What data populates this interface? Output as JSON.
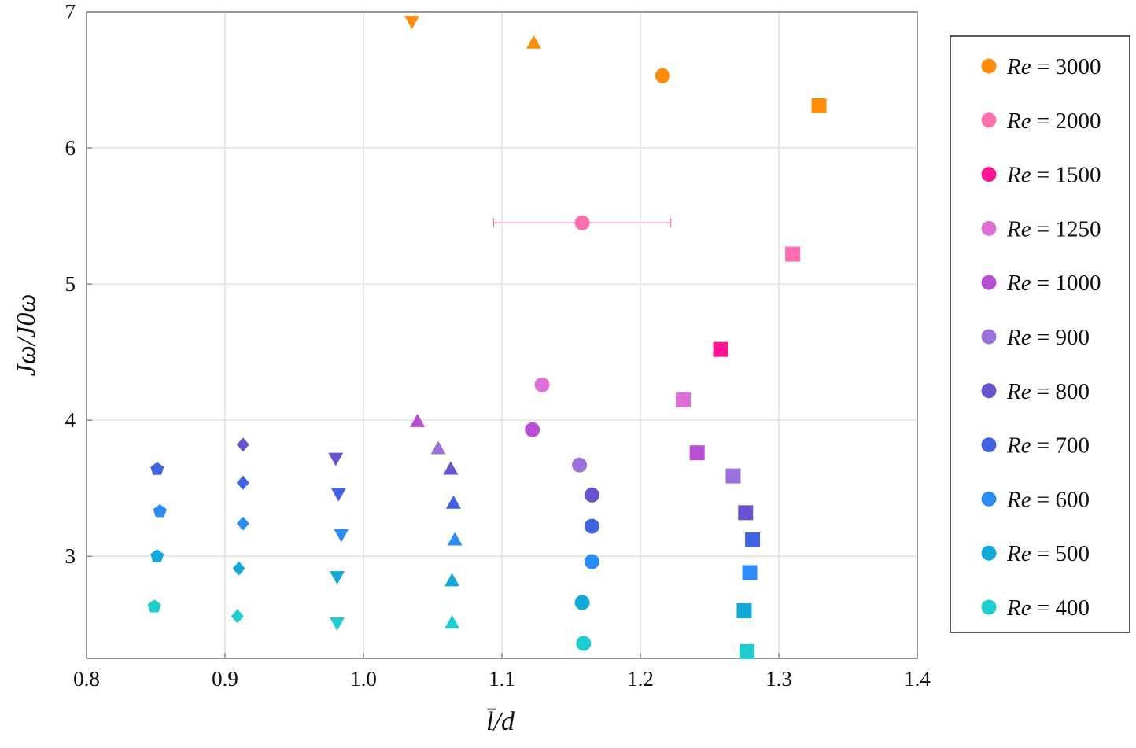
{
  "chart_data": {
    "type": "scatter",
    "xlabel": "l̄/d",
    "ylabel": "Jω/J0ω",
    "xlim": [
      0.8,
      1.4
    ],
    "ylim": [
      2.25,
      7.0
    ],
    "grid": true,
    "legend_position": "right",
    "x_ticks": [
      "0.8",
      "0.9",
      "1.0",
      "1.1",
      "1.2",
      "1.3",
      "1.4"
    ],
    "y_ticks": [
      "3",
      "4",
      "5",
      "6",
      "7"
    ],
    "marker_shapes": [
      "pentagon",
      "diamond",
      "triangle-down",
      "triangle-up",
      "circle",
      "square"
    ],
    "series": [
      {
        "name": "Re = 3000",
        "re": "3000",
        "color": "#ff8c0a",
        "points": [
          {
            "x": 1.035,
            "y": 6.93,
            "marker": "triangle-down"
          },
          {
            "x": 1.123,
            "y": 6.77,
            "marker": "triangle-up"
          },
          {
            "x": 1.216,
            "y": 6.53,
            "marker": "circle"
          },
          {
            "x": 1.329,
            "y": 6.31,
            "marker": "square"
          }
        ]
      },
      {
        "name": "Re = 2000",
        "re": "2000",
        "color": "#ff6fb0",
        "points": [
          {
            "x": 1.158,
            "y": 5.45,
            "marker": "circle",
            "xerr": [
              1.094,
              1.222
            ]
          },
          {
            "x": 1.31,
            "y": 5.22,
            "marker": "square"
          }
        ]
      },
      {
        "name": "Re = 1500",
        "re": "1500",
        "color": "#ff1493",
        "points": [
          {
            "x": 1.258,
            "y": 4.52,
            "marker": "square"
          }
        ]
      },
      {
        "name": "Re = 1250",
        "re": "1250",
        "color": "#de6fd6",
        "points": [
          {
            "x": 1.129,
            "y": 4.26,
            "marker": "circle"
          },
          {
            "x": 1.231,
            "y": 4.15,
            "marker": "square"
          }
        ]
      },
      {
        "name": "Re = 1000",
        "re": "1000",
        "color": "#b84fd2",
        "points": [
          {
            "x": 1.039,
            "y": 3.99,
            "marker": "triangle-up"
          },
          {
            "x": 1.122,
            "y": 3.93,
            "marker": "circle"
          },
          {
            "x": 1.241,
            "y": 3.76,
            "marker": "square"
          }
        ]
      },
      {
        "name": "Re = 900",
        "re": "900",
        "color": "#9b72dc",
        "points": [
          {
            "x": 1.054,
            "y": 3.79,
            "marker": "triangle-up"
          },
          {
            "x": 1.156,
            "y": 3.67,
            "marker": "circle"
          },
          {
            "x": 1.267,
            "y": 3.59,
            "marker": "square"
          }
        ]
      },
      {
        "name": "Re = 800",
        "re": "800",
        "color": "#6a52cf",
        "points": [
          {
            "x": 0.913,
            "y": 3.82,
            "marker": "diamond"
          },
          {
            "x": 0.98,
            "y": 3.72,
            "marker": "triangle-down"
          },
          {
            "x": 1.063,
            "y": 3.64,
            "marker": "triangle-up"
          },
          {
            "x": 1.165,
            "y": 3.45,
            "marker": "circle"
          },
          {
            "x": 1.276,
            "y": 3.32,
            "marker": "square"
          }
        ]
      },
      {
        "name": "Re = 700",
        "re": "700",
        "color": "#4263e0",
        "points": [
          {
            "x": 0.851,
            "y": 3.64,
            "marker": "pentagon"
          },
          {
            "x": 0.913,
            "y": 3.54,
            "marker": "diamond"
          },
          {
            "x": 0.982,
            "y": 3.46,
            "marker": "triangle-down"
          },
          {
            "x": 1.065,
            "y": 3.39,
            "marker": "triangle-up"
          },
          {
            "x": 1.165,
            "y": 3.22,
            "marker": "circle"
          },
          {
            "x": 1.281,
            "y": 3.12,
            "marker": "square"
          }
        ]
      },
      {
        "name": "Re = 600",
        "re": "600",
        "color": "#2b8cf5",
        "points": [
          {
            "x": 0.853,
            "y": 3.33,
            "marker": "pentagon"
          },
          {
            "x": 0.913,
            "y": 3.24,
            "marker": "diamond"
          },
          {
            "x": 0.984,
            "y": 3.16,
            "marker": "triangle-down"
          },
          {
            "x": 1.066,
            "y": 3.12,
            "marker": "triangle-up"
          },
          {
            "x": 1.165,
            "y": 2.96,
            "marker": "circle"
          },
          {
            "x": 1.279,
            "y": 2.88,
            "marker": "square"
          }
        ]
      },
      {
        "name": "Re = 500",
        "re": "500",
        "color": "#12a8d8",
        "points": [
          {
            "x": 0.851,
            "y": 3.0,
            "marker": "pentagon"
          },
          {
            "x": 0.91,
            "y": 2.91,
            "marker": "diamond"
          },
          {
            "x": 0.981,
            "y": 2.85,
            "marker": "triangle-down"
          },
          {
            "x": 1.064,
            "y": 2.82,
            "marker": "triangle-up"
          },
          {
            "x": 1.158,
            "y": 2.66,
            "marker": "circle"
          },
          {
            "x": 1.275,
            "y": 2.6,
            "marker": "square"
          }
        ]
      },
      {
        "name": "Re = 400",
        "re": "400",
        "color": "#1ecdcd",
        "points": [
          {
            "x": 0.849,
            "y": 2.63,
            "marker": "pentagon"
          },
          {
            "x": 0.909,
            "y": 2.56,
            "marker": "diamond"
          },
          {
            "x": 0.981,
            "y": 2.51,
            "marker": "triangle-down"
          },
          {
            "x": 1.064,
            "y": 2.51,
            "marker": "triangle-up"
          },
          {
            "x": 1.159,
            "y": 2.36,
            "marker": "circle"
          },
          {
            "x": 1.277,
            "y": 2.3,
            "marker": "square"
          }
        ]
      }
    ]
  }
}
